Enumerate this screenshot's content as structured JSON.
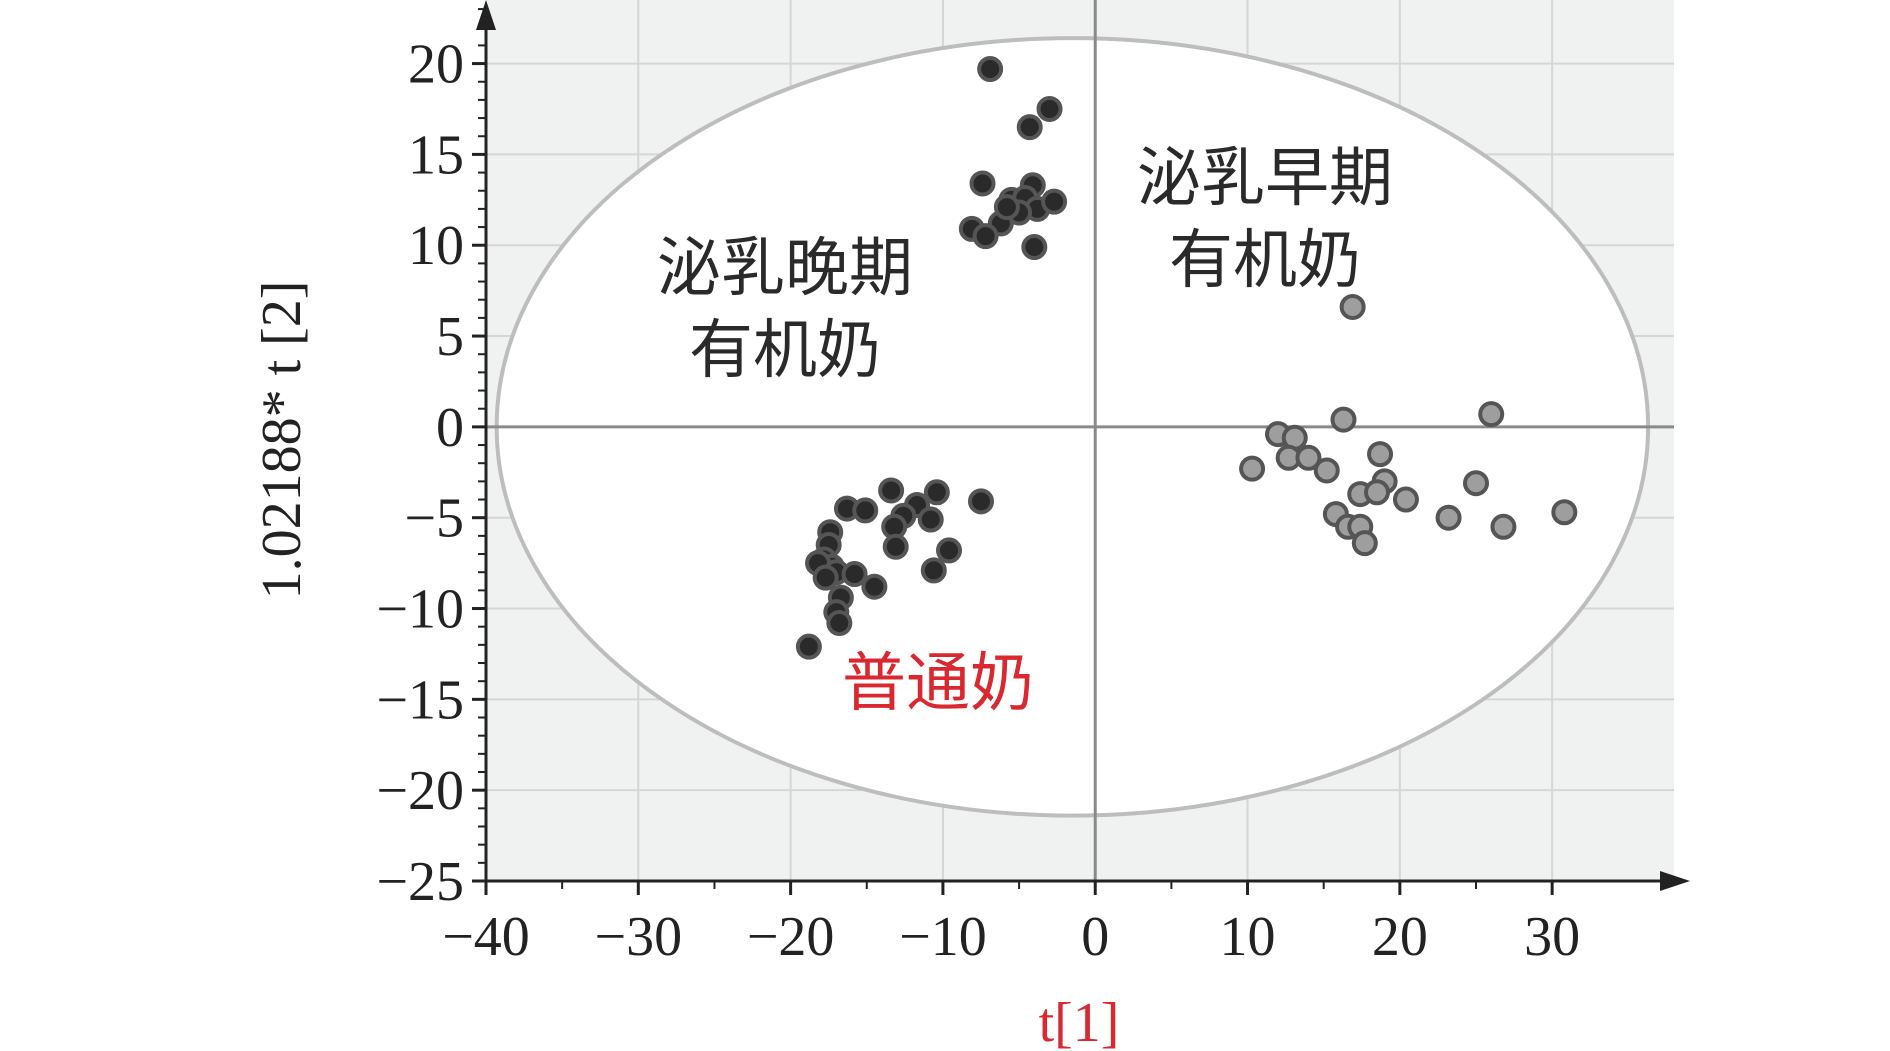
{
  "chart_data": {
    "type": "scatter",
    "title": "",
    "xlabel": "t[1]",
    "ylabel": "1.02188* t [2]",
    "xlim": [
      -40,
      38
    ],
    "ylim": [
      -25,
      23.5
    ],
    "x_ticks": [
      -40,
      -30,
      -20,
      -10,
      0,
      10,
      20,
      30
    ],
    "y_ticks": [
      -25,
      -20,
      -15,
      -10,
      -5,
      0,
      5,
      10,
      15,
      20
    ],
    "x_tick_labels": [
      "−40",
      "−30",
      "−20",
      "−10",
      "0",
      "10",
      "20",
      "30"
    ],
    "y_tick_labels": [
      "−25",
      "−20",
      "−15",
      "−10",
      "−5",
      "0",
      "5",
      "10",
      "15",
      "20"
    ],
    "grid": true,
    "plot_background": "#f0f1f1",
    "confidence_ellipse": {
      "cx": -1.5,
      "cy": 0,
      "rx": 37.8,
      "ry": 21.4,
      "color": "#bdbdbd"
    },
    "series": [
      {
        "label_lines": [
          "泌乳晚期",
          "有机奶"
        ],
        "color": "#2a2a2a",
        "label_color": "#2a2a2a",
        "points": [
          [
            -6.9,
            19.7
          ],
          [
            -3.0,
            17.5
          ],
          [
            -4.3,
            16.5
          ],
          [
            -7.4,
            13.4
          ],
          [
            -4.1,
            13.3
          ],
          [
            -5.5,
            12.5
          ],
          [
            -4.6,
            12.6
          ],
          [
            -3.8,
            12.0
          ],
          [
            -2.7,
            12.4
          ],
          [
            -5.0,
            11.8
          ],
          [
            -6.2,
            11.2
          ],
          [
            -8.1,
            10.9
          ],
          [
            -7.2,
            10.5
          ],
          [
            -4.0,
            9.9
          ],
          [
            -5.8,
            12.1
          ]
        ]
      },
      {
        "label_lines": [
          "泌乳早期",
          "有机奶"
        ],
        "color": "#9e9e9e",
        "label_color": "#2a2a2a",
        "points": [
          [
            16.9,
            6.6
          ],
          [
            16.3,
            0.4
          ],
          [
            26.0,
            0.7
          ],
          [
            12.0,
            -0.4
          ],
          [
            13.1,
            -0.6
          ],
          [
            18.7,
            -1.5
          ],
          [
            12.7,
            -1.7
          ],
          [
            14.0,
            -1.7
          ],
          [
            15.2,
            -2.4
          ],
          [
            10.3,
            -2.3
          ],
          [
            19.0,
            -3.0
          ],
          [
            17.4,
            -3.7
          ],
          [
            18.5,
            -3.6
          ],
          [
            20.4,
            -4.0
          ],
          [
            25.0,
            -3.1
          ],
          [
            15.8,
            -4.8
          ],
          [
            16.6,
            -5.5
          ],
          [
            17.4,
            -5.5
          ],
          [
            23.2,
            -5.0
          ],
          [
            26.8,
            -5.5
          ],
          [
            30.8,
            -4.7
          ],
          [
            17.7,
            -6.4
          ]
        ]
      },
      {
        "label_lines": [
          "普通奶"
        ],
        "color": "#2a2a2a",
        "label_color": "#d9282f",
        "points": [
          [
            -13.4,
            -3.5
          ],
          [
            -10.4,
            -3.6
          ],
          [
            -7.5,
            -4.1
          ],
          [
            -11.7,
            -4.3
          ],
          [
            -16.3,
            -4.5
          ],
          [
            -15.1,
            -4.6
          ],
          [
            -12.6,
            -4.9
          ],
          [
            -10.8,
            -5.1
          ],
          [
            -13.2,
            -5.5
          ],
          [
            -17.4,
            -5.8
          ],
          [
            -17.5,
            -6.5
          ],
          [
            -13.1,
            -6.6
          ],
          [
            -9.6,
            -6.8
          ],
          [
            -17.8,
            -7.3
          ],
          [
            -17.3,
            -7.7
          ],
          [
            -18.2,
            -7.5
          ],
          [
            -10.6,
            -7.9
          ],
          [
            -17.0,
            -8.0
          ],
          [
            -15.8,
            -8.1
          ],
          [
            -17.7,
            -8.3
          ],
          [
            -14.5,
            -8.8
          ],
          [
            -16.7,
            -9.4
          ],
          [
            -17.0,
            -10.2
          ],
          [
            -16.8,
            -10.8
          ],
          [
            -18.8,
            -12.1
          ]
        ]
      }
    ],
    "annotations": []
  }
}
